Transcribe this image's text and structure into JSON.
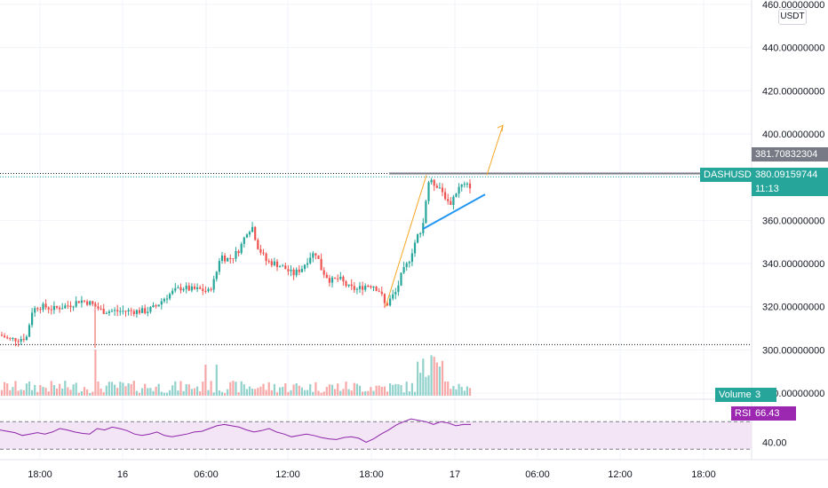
{
  "currency_label": "USDT",
  "symbol": "DASHUSDT",
  "last_price": "380.09159744",
  "countdown": "11:13",
  "horizontal_line_price": "381.70832304",
  "volume_label": "Volume",
  "volume_value": "3",
  "rsi_label": "RSI",
  "rsi_value": "66.43",
  "colors": {
    "up": "#26a69a",
    "down": "#ef5350",
    "rsi_line": "#8e24aa",
    "rsi_band": "#f3e5f5",
    "arrow": "#f5a623",
    "trendline": "#2196f3",
    "resistance": "#787b86"
  },
  "chart_data": {
    "type": "candlestick",
    "price_axis": {
      "ticks": [
        "460.00000000",
        "440.00000000",
        "420.00000000",
        "400.00000000",
        "360.00000000",
        "340.00000000",
        "320.00000000",
        "300.00000000",
        "280.00000000"
      ],
      "range": [
        278,
        462
      ]
    },
    "time_axis": {
      "ticks": [
        "18:00",
        "16",
        "06:00",
        "12:00",
        "18:00",
        "17",
        "06:00",
        "12:00",
        "18:00"
      ]
    },
    "price_path": [
      [
        0,
        307
      ],
      [
        10,
        305
      ],
      [
        20,
        305
      ],
      [
        30,
        306
      ],
      [
        36,
        318
      ],
      [
        42,
        320
      ],
      [
        50,
        320
      ],
      [
        60,
        319
      ],
      [
        70,
        320
      ],
      [
        80,
        321
      ],
      [
        90,
        323
      ],
      [
        100,
        322
      ],
      [
        108,
        320
      ],
      [
        115,
        318
      ],
      [
        125,
        318
      ],
      [
        135,
        318
      ],
      [
        145,
        318
      ],
      [
        155,
        318
      ],
      [
        165,
        318
      ],
      [
        175,
        320
      ],
      [
        185,
        324
      ],
      [
        195,
        327
      ],
      [
        205,
        329
      ],
      [
        215,
        328
      ],
      [
        225,
        328
      ],
      [
        235,
        327
      ],
      [
        242,
        333
      ],
      [
        248,
        344
      ],
      [
        255,
        342
      ],
      [
        262,
        343
      ],
      [
        270,
        347
      ],
      [
        278,
        355
      ],
      [
        284,
        357
      ],
      [
        290,
        348
      ],
      [
        300,
        341
      ],
      [
        310,
        340
      ],
      [
        320,
        338
      ],
      [
        330,
        335
      ],
      [
        340,
        338
      ],
      [
        350,
        344
      ],
      [
        356,
        345
      ],
      [
        362,
        337
      ],
      [
        372,
        332
      ],
      [
        382,
        333
      ],
      [
        392,
        329
      ],
      [
        402,
        328
      ],
      [
        412,
        330
      ],
      [
        420,
        330
      ],
      [
        428,
        327
      ],
      [
        434,
        320
      ],
      [
        440,
        324
      ],
      [
        446,
        327
      ],
      [
        452,
        335
      ],
      [
        460,
        341
      ],
      [
        468,
        351
      ],
      [
        476,
        358
      ],
      [
        482,
        378
      ],
      [
        488,
        377
      ],
      [
        494,
        376
      ],
      [
        500,
        372
      ],
      [
        506,
        367
      ],
      [
        512,
        372
      ],
      [
        518,
        376
      ],
      [
        524,
        376
      ],
      [
        530,
        376
      ]
    ],
    "volume_range": [
      0,
      100
    ],
    "rsi": {
      "range": [
        20,
        100
      ],
      "levels": [
        70,
        30
      ],
      "ticks": [
        "80.00",
        "40.00"
      ],
      "values": [
        58,
        56,
        54,
        50,
        52,
        54,
        52,
        55,
        60,
        58,
        55,
        53,
        52,
        60,
        58,
        62,
        60,
        57,
        52,
        50,
        52,
        55,
        50,
        48,
        50,
        52,
        55,
        56,
        60,
        64,
        66,
        64,
        62,
        58,
        55,
        57,
        60,
        55,
        52,
        48,
        50,
        52,
        50,
        47,
        45,
        44,
        47,
        48,
        46,
        40,
        45,
        52,
        58,
        65,
        70,
        74,
        72,
        70,
        66,
        70,
        68,
        64,
        66,
        66
      ]
    },
    "horizontal_line": 381.71,
    "projection": {
      "from": [
        434,
        320
      ],
      "to": [
        480,
        381
      ],
      "to2": [
        548,
        381
      ],
      "target": [
        566,
        404
      ]
    },
    "trendline": {
      "from": [
        476,
        356
      ],
      "to": [
        546,
        372
      ]
    }
  }
}
